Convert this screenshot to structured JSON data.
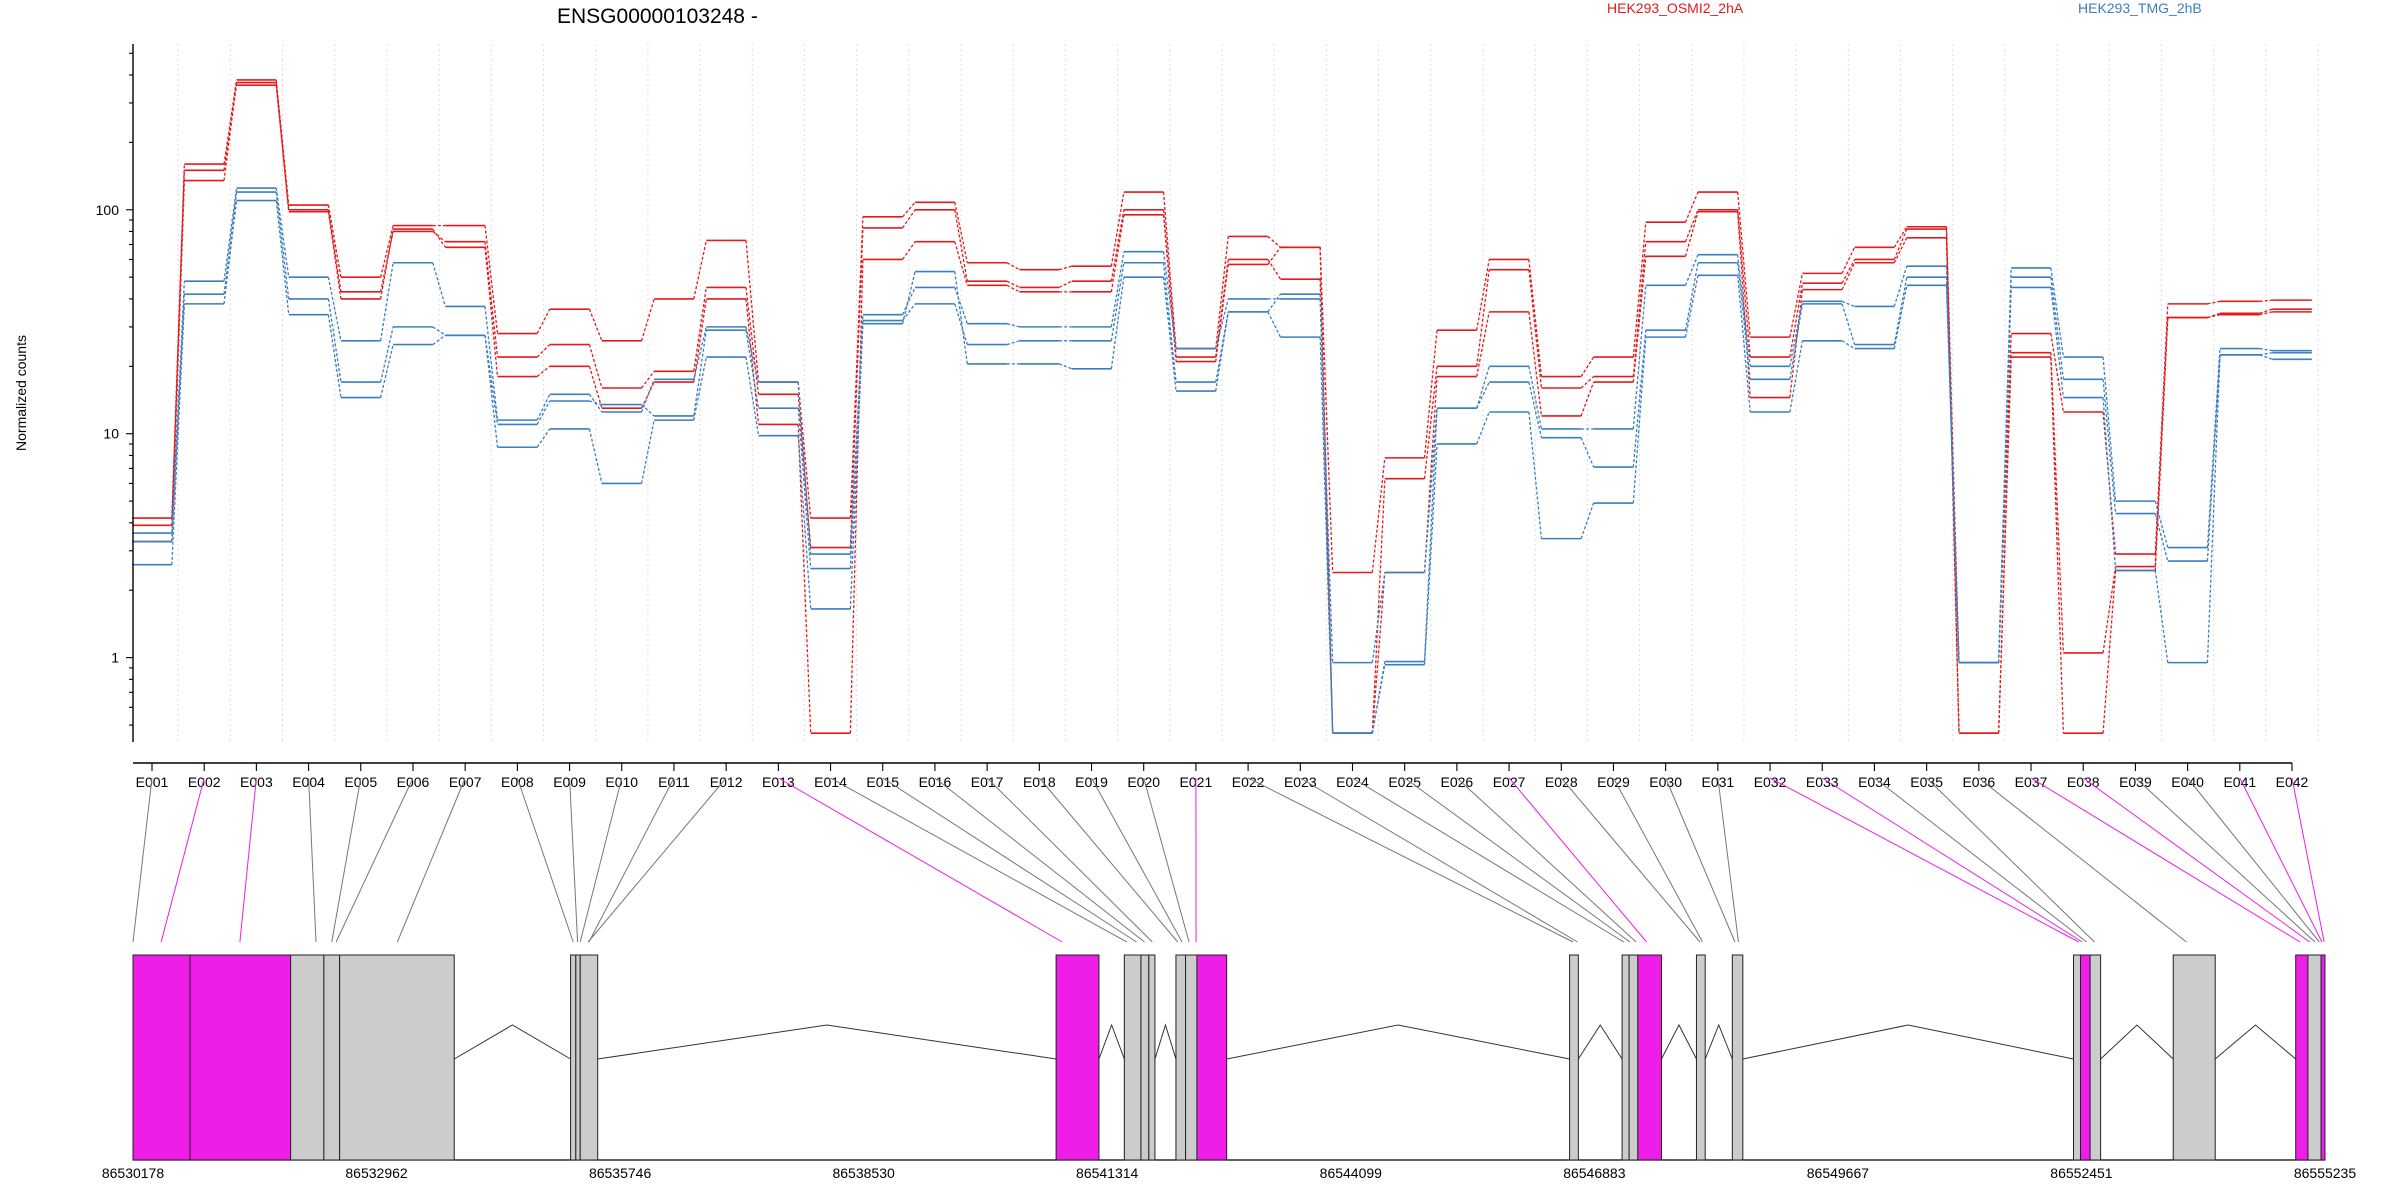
{
  "chart_data": {
    "type": "line",
    "title": "ENSG00000103248 -",
    "ylabel": "Normalized counts",
    "xlabel": "",
    "yscale": "log",
    "ylim": [
      0.42,
      550
    ],
    "yticks": [
      {
        "v": 1,
        "label": "1"
      },
      {
        "v": 10,
        "label": "10"
      },
      {
        "v": 100,
        "label": "100"
      }
    ],
    "grid": "vertical dotted per exon bin",
    "legend": [
      {
        "name": "HEK293_OSMI2_2hA",
        "color": "#e31a1c",
        "position": "top-center"
      },
      {
        "name": "HEK293_TMG_2hB",
        "color": "#3a7fc1",
        "position": "top-right"
      }
    ],
    "categories": [
      "E001",
      "E002",
      "E003",
      "E004",
      "E005",
      "E006",
      "E007",
      "E008",
      "E009",
      "E010",
      "E011",
      "E012",
      "E013",
      "E014",
      "E015",
      "E016",
      "E017",
      "E018",
      "E019",
      "E020",
      "E021",
      "E022",
      "E023",
      "E024",
      "E025",
      "E026",
      "E027",
      "E028",
      "E029",
      "E030",
      "E031",
      "E032",
      "E033",
      "E034",
      "E035",
      "E036",
      "E037",
      "E038",
      "E039",
      "E040",
      "E041",
      "E042"
    ],
    "series": [
      {
        "group": "HEK293_OSMI2_2hA",
        "color": "#e31a1c",
        "values": [
          4.2,
          160,
          380,
          105,
          50,
          85,
          85,
          28,
          36,
          26,
          40,
          73,
          17,
          4.2,
          93,
          108,
          58,
          54,
          56,
          120,
          24,
          76,
          68,
          2.4,
          7.8,
          29,
          60,
          18,
          22,
          88,
          120,
          27,
          52,
          68,
          84,
          0.95,
          28,
          12.5,
          2.9,
          38,
          39,
          39.5
        ]
      },
      {
        "group": "HEK293_OSMI2_2hA",
        "color": "#e31a1c",
        "values": [
          3.9,
          150,
          360,
          100,
          43,
          80,
          72,
          22,
          25,
          16,
          19,
          45,
          15,
          3.1,
          83,
          100,
          48,
          45,
          48,
          100,
          22,
          60,
          49,
          0.46,
          6.3,
          20,
          54,
          16,
          18,
          72,
          100,
          22,
          47,
          60,
          82,
          0.46,
          23,
          1.05,
          2.55,
          33,
          34,
          35
        ]
      },
      {
        "group": "HEK293_OSMI2_2hA",
        "color": "#e31a1c",
        "values": [
          3.3,
          135,
          370,
          98,
          40,
          82,
          68,
          18,
          20,
          13,
          17,
          40,
          11,
          0.46,
          60,
          72,
          46,
          43,
          43,
          95,
          21,
          57,
          68,
          0.46,
          2.4,
          18,
          35,
          12,
          17,
          62,
          98,
          14.5,
          44,
          58,
          75,
          0.46,
          22,
          0.46,
          2.45,
          33,
          34.5,
          36
        ]
      },
      {
        "group": "HEK293_TMG_2hB",
        "color": "#3a7fc1",
        "values": [
          3.6,
          48,
          125,
          50,
          26,
          58,
          37,
          11.5,
          15,
          12.5,
          17.5,
          30,
          17,
          2.9,
          34,
          45,
          31,
          30,
          30,
          65,
          24,
          40,
          40,
          0.95,
          2.4,
          13,
          20,
          10.5,
          10.5,
          46,
          63,
          20,
          39,
          37,
          56,
          0.95,
          55,
          22,
          5,
          3.1,
          24,
          23.5
        ]
      },
      {
        "group": "HEK293_TMG_2hB",
        "color": "#3a7fc1",
        "values": [
          3.3,
          42,
          120,
          40,
          17,
          30,
          27.5,
          11,
          14,
          13.5,
          12,
          29,
          13,
          2.5,
          32,
          38,
          25,
          26,
          26,
          58,
          17,
          35,
          42,
          0.46,
          0.96,
          13,
          17,
          9.6,
          7.1,
          29,
          58,
          17.5,
          38,
          25,
          50,
          0.95,
          50,
          17.5,
          4.4,
          2.7,
          22.5,
          23
        ]
      },
      {
        "group": "HEK293_TMG_2hB",
        "color": "#3a7fc1",
        "values": [
          2.6,
          38,
          110,
          34,
          14.5,
          25,
          27.5,
          8.7,
          10.5,
          6,
          11.5,
          22,
          9.8,
          1.65,
          31,
          53,
          20.5,
          20.5,
          19.5,
          50,
          15.5,
          35,
          27,
          0.46,
          0.93,
          9,
          12.5,
          3.4,
          4.9,
          27,
          51,
          12.5,
          26,
          24,
          46,
          0.95,
          45,
          14.5,
          2.45,
          0.95,
          22.5,
          21.5
        ]
      }
    ],
    "gene_coords": [
      "86530178",
      "86532962",
      "86535746",
      "86538530",
      "86541314",
      "86544099",
      "86546883",
      "86549667",
      "86552451",
      "86555235"
    ],
    "gene_range": [
      86530178,
      86555235
    ],
    "gene_model": {
      "region_color": "#cccccc",
      "highlight_color": "#ee1ee8",
      "boxes": [
        {
          "s": 86530178,
          "e": 86530830,
          "h": true
        },
        {
          "s": 86530830,
          "e": 86531980,
          "h": true
        },
        {
          "s": 86531980,
          "e": 86532360,
          "h": false
        },
        {
          "s": 86532360,
          "e": 86532540,
          "h": false
        },
        {
          "s": 86532540,
          "e": 86533850,
          "h": false
        },
        {
          "s": 86535180,
          "e": 86535240,
          "h": false
        },
        {
          "s": 86535240,
          "e": 86535290,
          "h": false
        },
        {
          "s": 86535290,
          "e": 86535490,
          "h": false
        },
        {
          "s": 86540730,
          "e": 86541220,
          "h": true
        },
        {
          "s": 86541510,
          "e": 86541700,
          "h": false
        },
        {
          "s": 86541700,
          "e": 86541790,
          "h": false
        },
        {
          "s": 86541790,
          "e": 86541860,
          "h": false
        },
        {
          "s": 86542100,
          "e": 86542210,
          "h": false
        },
        {
          "s": 86542210,
          "e": 86542340,
          "h": false
        },
        {
          "s": 86542340,
          "e": 86542680,
          "h": true
        },
        {
          "s": 86546600,
          "e": 86546700,
          "h": false
        },
        {
          "s": 86547200,
          "e": 86547280,
          "h": false
        },
        {
          "s": 86547280,
          "e": 86547380,
          "h": false
        },
        {
          "s": 86547380,
          "e": 86547650,
          "h": true
        },
        {
          "s": 86548050,
          "e": 86548150,
          "h": false
        },
        {
          "s": 86548460,
          "e": 86548580,
          "h": false
        },
        {
          "s": 86552360,
          "e": 86552440,
          "h": false
        },
        {
          "s": 86552440,
          "e": 86552550,
          "h": true
        },
        {
          "s": 86552550,
          "e": 86552670,
          "h": false
        },
        {
          "s": 86553500,
          "e": 86553980,
          "h": false
        },
        {
          "s": 86554900,
          "e": 86555040,
          "h": true
        },
        {
          "s": 86555040,
          "e": 86555190,
          "h": false
        },
        {
          "s": 86555190,
          "e": 86555235,
          "h": true
        }
      ],
      "introns": [
        [
          86533850,
          86535180
        ],
        [
          86535490,
          86540730
        ],
        [
          86541220,
          86541510
        ],
        [
          86541860,
          86542100
        ],
        [
          86542680,
          86546600
        ],
        [
          86546700,
          86547200
        ],
        [
          86547650,
          86548050
        ],
        [
          86548150,
          86548460
        ],
        [
          86548580,
          86552360
        ],
        [
          86552670,
          86553500
        ],
        [
          86553980,
          86554900
        ]
      ],
      "bin_map": [
        {
          "g": 86530178,
          "h": false
        },
        {
          "g": 86530500,
          "h": true
        },
        {
          "g": 86531400,
          "h": true
        },
        {
          "g": 86532270,
          "h": false
        },
        {
          "g": 86532450,
          "h": false
        },
        {
          "g": 86532500,
          "h": false
        },
        {
          "g": 86533200,
          "h": false
        },
        {
          "g": 86535210,
          "h": false
        },
        {
          "g": 86535260,
          "h": false
        },
        {
          "g": 86535290,
          "h": false
        },
        {
          "g": 86535390,
          "h": false
        },
        {
          "g": 86535380,
          "h": false
        },
        {
          "g": 86540800,
          "h": true
        },
        {
          "g": 86541540,
          "h": false
        },
        {
          "g": 86541650,
          "h": false
        },
        {
          "g": 86541740,
          "h": false
        },
        {
          "g": 86541830,
          "h": false
        },
        {
          "g": 86542120,
          "h": false
        },
        {
          "g": 86542170,
          "h": false
        },
        {
          "g": 86542250,
          "h": false
        },
        {
          "g": 86542330,
          "h": true
        },
        {
          "g": 86546640,
          "h": false
        },
        {
          "g": 86546690,
          "h": false
        },
        {
          "g": 86547220,
          "h": false
        },
        {
          "g": 86547290,
          "h": false
        },
        {
          "g": 86547360,
          "h": false
        },
        {
          "g": 86547480,
          "h": true
        },
        {
          "g": 86548090,
          "h": false
        },
        {
          "g": 86548120,
          "h": false
        },
        {
          "g": 86548490,
          "h": false
        },
        {
          "g": 86548530,
          "h": false
        },
        {
          "g": 86552420,
          "h": true
        },
        {
          "g": 86552460,
          "h": true
        },
        {
          "g": 86552510,
          "h": false
        },
        {
          "g": 86552600,
          "h": false
        },
        {
          "g": 86553650,
          "h": false
        },
        {
          "g": 86554950,
          "h": true
        },
        {
          "g": 86555060,
          "h": true
        },
        {
          "g": 86555120,
          "h": false
        },
        {
          "g": 86555170,
          "h": false
        },
        {
          "g": 86555200,
          "h": true
        },
        {
          "g": 86555225,
          "h": true
        }
      ]
    }
  }
}
